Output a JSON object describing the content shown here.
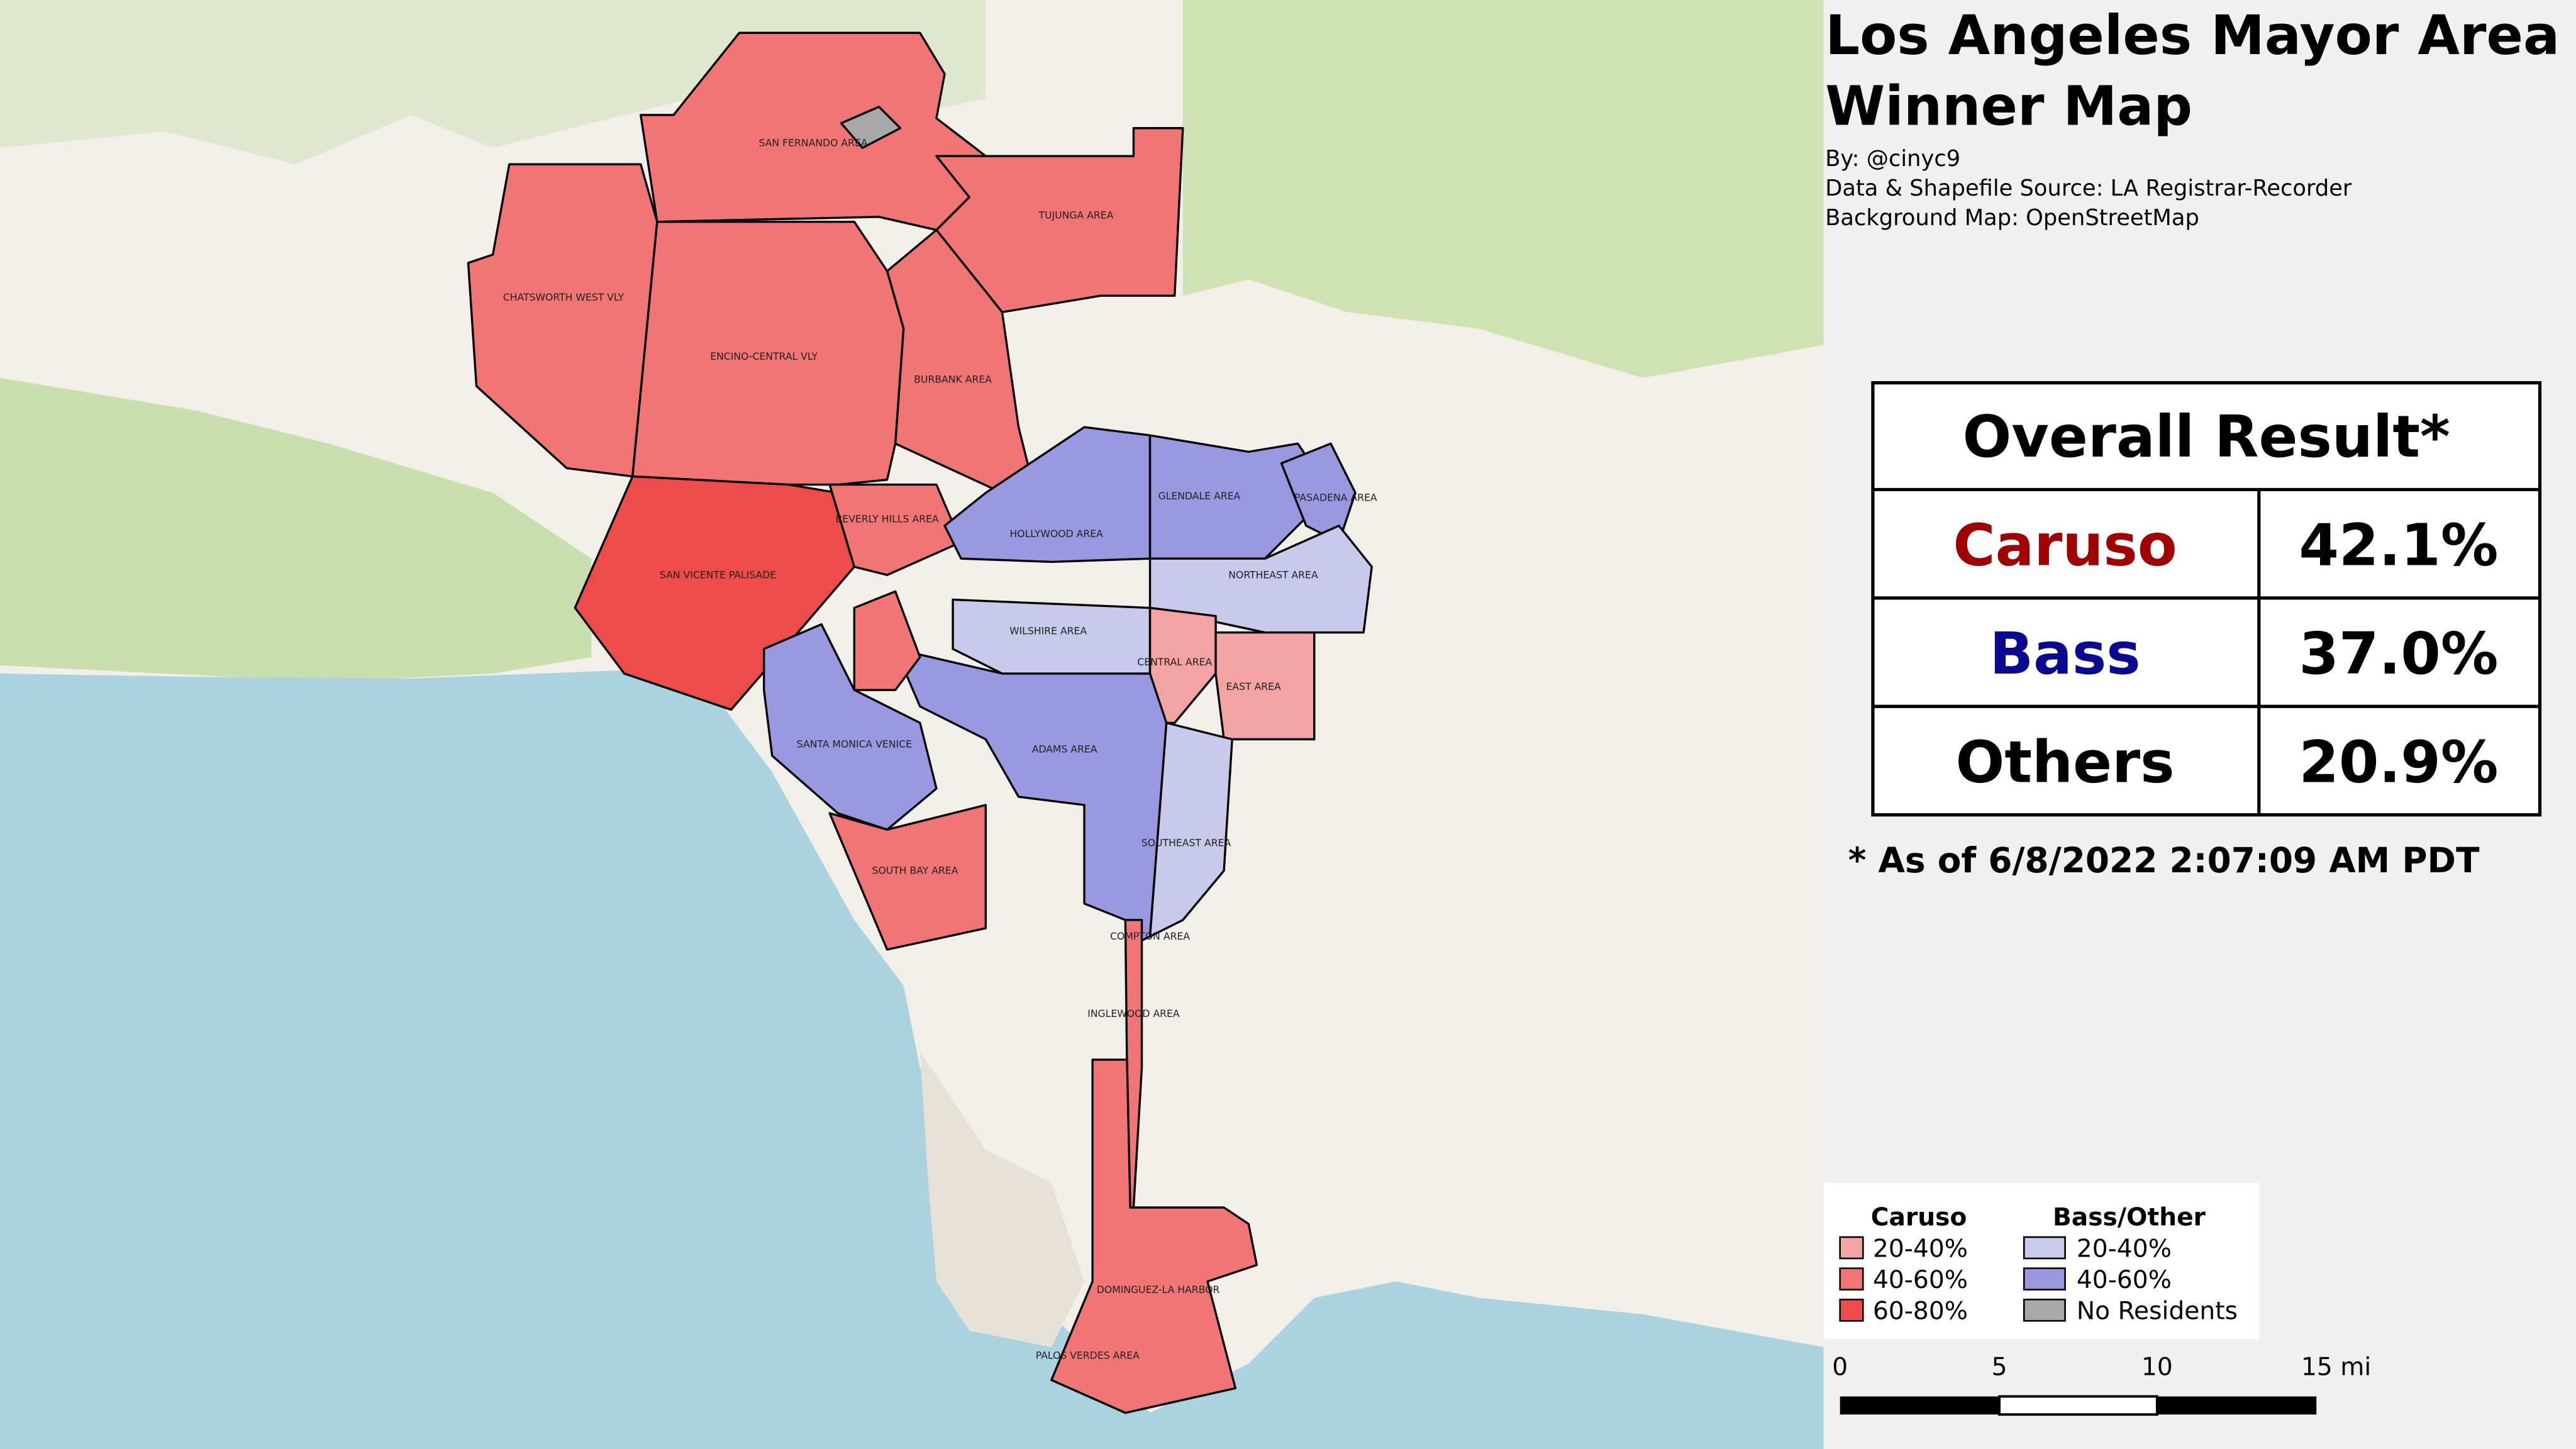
{
  "title": "Los Angeles Mayor Area Winner Map",
  "credits": [
    "By: @cinyc9",
    "Data & Shapefile Source: LA Registrar-Recorder",
    "Background Map: OpenStreetMap"
  ],
  "overall": {
    "title": "Overall Result*",
    "rows": [
      [
        "Caruso",
        "42.1%"
      ],
      [
        "Bass",
        "37.0%"
      ],
      [
        "Others",
        "20.9%"
      ]
    ]
  },
  "footnote": "* As of 6/8/2022 2:07:09 AM PDT",
  "legend": {
    "groups": [
      {
        "title": "Caruso",
        "items": [
          "20-40%",
          "40-60%",
          "60-80%"
        ]
      },
      {
        "title": "Bass/Other",
        "items": [
          "20-40%",
          "40-60%",
          "No Residents"
        ]
      }
    ]
  },
  "scale": [
    "0",
    "5",
    "10",
    "15 mi"
  ],
  "areas": [
    {
      "label": "SAN FERNANDO AREA"
    },
    {
      "label": "TUJUNGA AREA"
    },
    {
      "label": "CHATSWORTH WEST VLY"
    },
    {
      "label": "ENCINO-CENTRAL VLY"
    },
    {
      "label": "BURBANK AREA"
    },
    {
      "label": "BEVERLY HILLS AREA"
    },
    {
      "label": "SAN VICENTE PALISADE"
    },
    {
      "label": "HOLLYWOOD AREA"
    },
    {
      "label": "GLENDALE AREA"
    },
    {
      "label": "PASADENA AREA"
    },
    {
      "label": "NORTHEAST AREA"
    },
    {
      "label": "WILSHIRE AREA"
    },
    {
      "label": "CENTRAL AREA"
    },
    {
      "label": "EAST AREA"
    },
    {
      "label": "SANTA MONICA VENICE"
    },
    {
      "label": "ADAMS AREA"
    },
    {
      "label": "SOUTHEAST AREA"
    },
    {
      "label": "SOUTH BAY AREA"
    },
    {
      "label": "COMPTON AREA"
    },
    {
      "label": "INGLEWOOD AREA"
    },
    {
      "label": "DOMINGUEZ-LA HARBOR"
    },
    {
      "label": "PALOS VERDES AREA"
    }
  ]
}
